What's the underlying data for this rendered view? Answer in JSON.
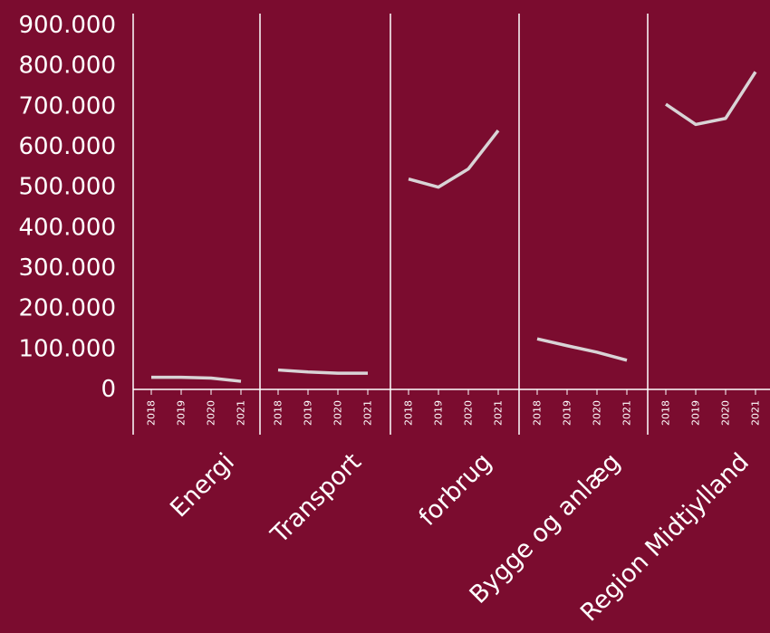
{
  "colors": {
    "background": "#7b0c2f",
    "line": "#d9d4d6",
    "axis": "#ffffff",
    "text": "#ffffff"
  },
  "chart_data": {
    "type": "line",
    "layout": "small-multiples",
    "title": "",
    "xlabel": "",
    "ylabel": "",
    "ylim": [
      0,
      900000
    ],
    "y_ticks": [
      0,
      100000,
      200000,
      300000,
      400000,
      500000,
      600000,
      700000,
      800000,
      900000
    ],
    "y_tick_labels": [
      "0",
      "100.000",
      "200.000",
      "300.000",
      "400.000",
      "500.000",
      "600.000",
      "700.000",
      "800.000",
      "900.000"
    ],
    "x": [
      "2018",
      "2019",
      "2020",
      "2021"
    ],
    "grid": false,
    "legend": "none",
    "panels": [
      {
        "label": "Energi",
        "values": [
          30000,
          30000,
          28000,
          20000
        ]
      },
      {
        "label": "Transport",
        "values": [
          48000,
          43000,
          40000,
          40000
        ]
      },
      {
        "label": "forbrug",
        "values": [
          520000,
          500000,
          545000,
          640000
        ]
      },
      {
        "label": "Bygge og anlæg",
        "values": [
          125000,
          108000,
          92000,
          72000
        ]
      },
      {
        "label": "Region Midtjylland",
        "values": [
          705000,
          655000,
          670000,
          785000
        ]
      }
    ]
  }
}
